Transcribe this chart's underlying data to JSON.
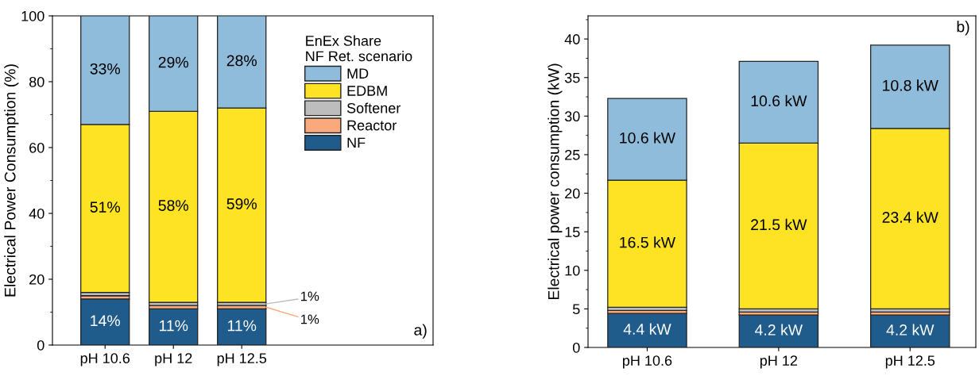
{
  "chart_data": [
    {
      "type": "bar",
      "stacked": true,
      "categories": [
        "pH 10.6",
        "pH 12",
        "pH 12.5"
      ],
      "ylabel": "Electrical Power Consumption (%)",
      "ylim": [
        0,
        100
      ],
      "yticks": [
        0,
        20,
        40,
        60,
        80,
        100
      ],
      "legend": "top right",
      "legend_title": "EnEx Share\nNF Ret. scenario",
      "annotations": [
        "a)"
      ],
      "series": [
        {
          "name": "NF",
          "color": "#1f5b8b",
          "values": [
            14,
            11,
            11
          ],
          "value_labels": [
            "14%",
            "11%",
            "11%"
          ]
        },
        {
          "name": "Reactor",
          "color": "#f9a97b",
          "values": [
            1,
            1,
            1
          ],
          "value_labels": [
            null,
            null,
            "1%"
          ]
        },
        {
          "name": "Softener",
          "color": "#bdbdbd",
          "values": [
            1,
            1,
            1
          ],
          "value_labels": [
            null,
            null,
            "1%"
          ]
        },
        {
          "name": "EDBM",
          "color": "#fde323",
          "values": [
            51,
            58,
            59
          ],
          "value_labels": [
            "51%",
            "58%",
            "59%"
          ]
        },
        {
          "name": "MD",
          "color": "#8fbcdb",
          "values": [
            33,
            29,
            28
          ],
          "value_labels": [
            "33%",
            "29%",
            "28%"
          ]
        }
      ]
    },
    {
      "type": "bar",
      "stacked": true,
      "categories": [
        "pH 10.6",
        "pH 12",
        "pH 12.5"
      ],
      "ylabel": "Electrical power consumption (kW)",
      "ylim": [
        0,
        43
      ],
      "yticks": [
        0,
        5,
        10,
        15,
        20,
        25,
        30,
        35,
        40
      ],
      "annotations": [
        "b)"
      ],
      "series": [
        {
          "color": "#1f5b8b",
          "values": [
            4.4,
            4.2,
            4.2
          ],
          "value_labels": [
            "4.4 kW",
            "4.2 kW",
            "4.2 kW"
          ]
        },
        {
          "color": "#f9a97b",
          "values": [
            0.4,
            0.4,
            0.4
          ]
        },
        {
          "color": "#bdbdbd",
          "values": [
            0.4,
            0.4,
            0.4
          ]
        },
        {
          "color": "#fde323",
          "values": [
            16.5,
            21.5,
            23.4
          ],
          "value_labels": [
            "16.5 kW",
            "21.5 kW",
            "23.4 kW"
          ]
        },
        {
          "color": "#8fbcdb",
          "values": [
            10.6,
            10.6,
            10.8
          ],
          "value_labels": [
            "10.6 kW",
            "10.6 kW",
            "10.8 kW"
          ]
        }
      ]
    }
  ]
}
